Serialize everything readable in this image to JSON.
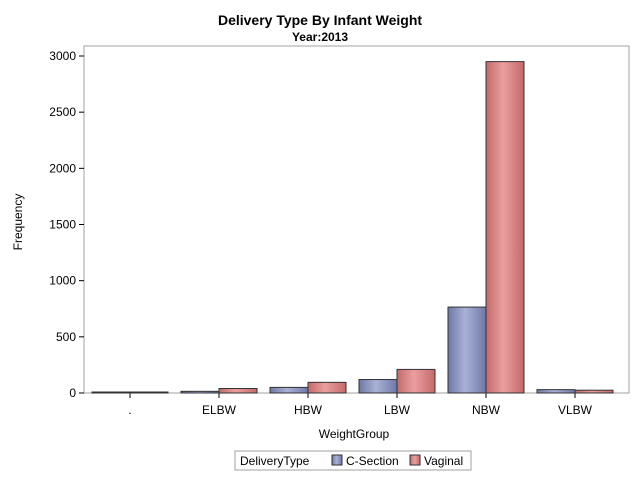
{
  "chart_data": {
    "type": "bar",
    "title": "Delivery Type By Infant Weight",
    "subtitle": "Year:2013",
    "xlabel": "WeightGroup",
    "ylabel": "Frequency",
    "categories": [
      ".",
      "ELBW",
      "HBW",
      "LBW",
      "NBW",
      "VLBW"
    ],
    "ylim": [
      0,
      3000
    ],
    "yticks": [
      0,
      500,
      1000,
      1500,
      2000,
      2500,
      3000
    ],
    "grid": false,
    "legend": {
      "title": "DeliveryType",
      "placement": "bottom-center"
    },
    "series": [
      {
        "name": "C-Section",
        "color": "#8a94bf",
        "values": [
          2,
          15,
          50,
          120,
          765,
          30
        ]
      },
      {
        "name": "Vaginal",
        "color": "#d98080",
        "values": [
          5,
          40,
          95,
          210,
          2950,
          25
        ]
      }
    ]
  }
}
